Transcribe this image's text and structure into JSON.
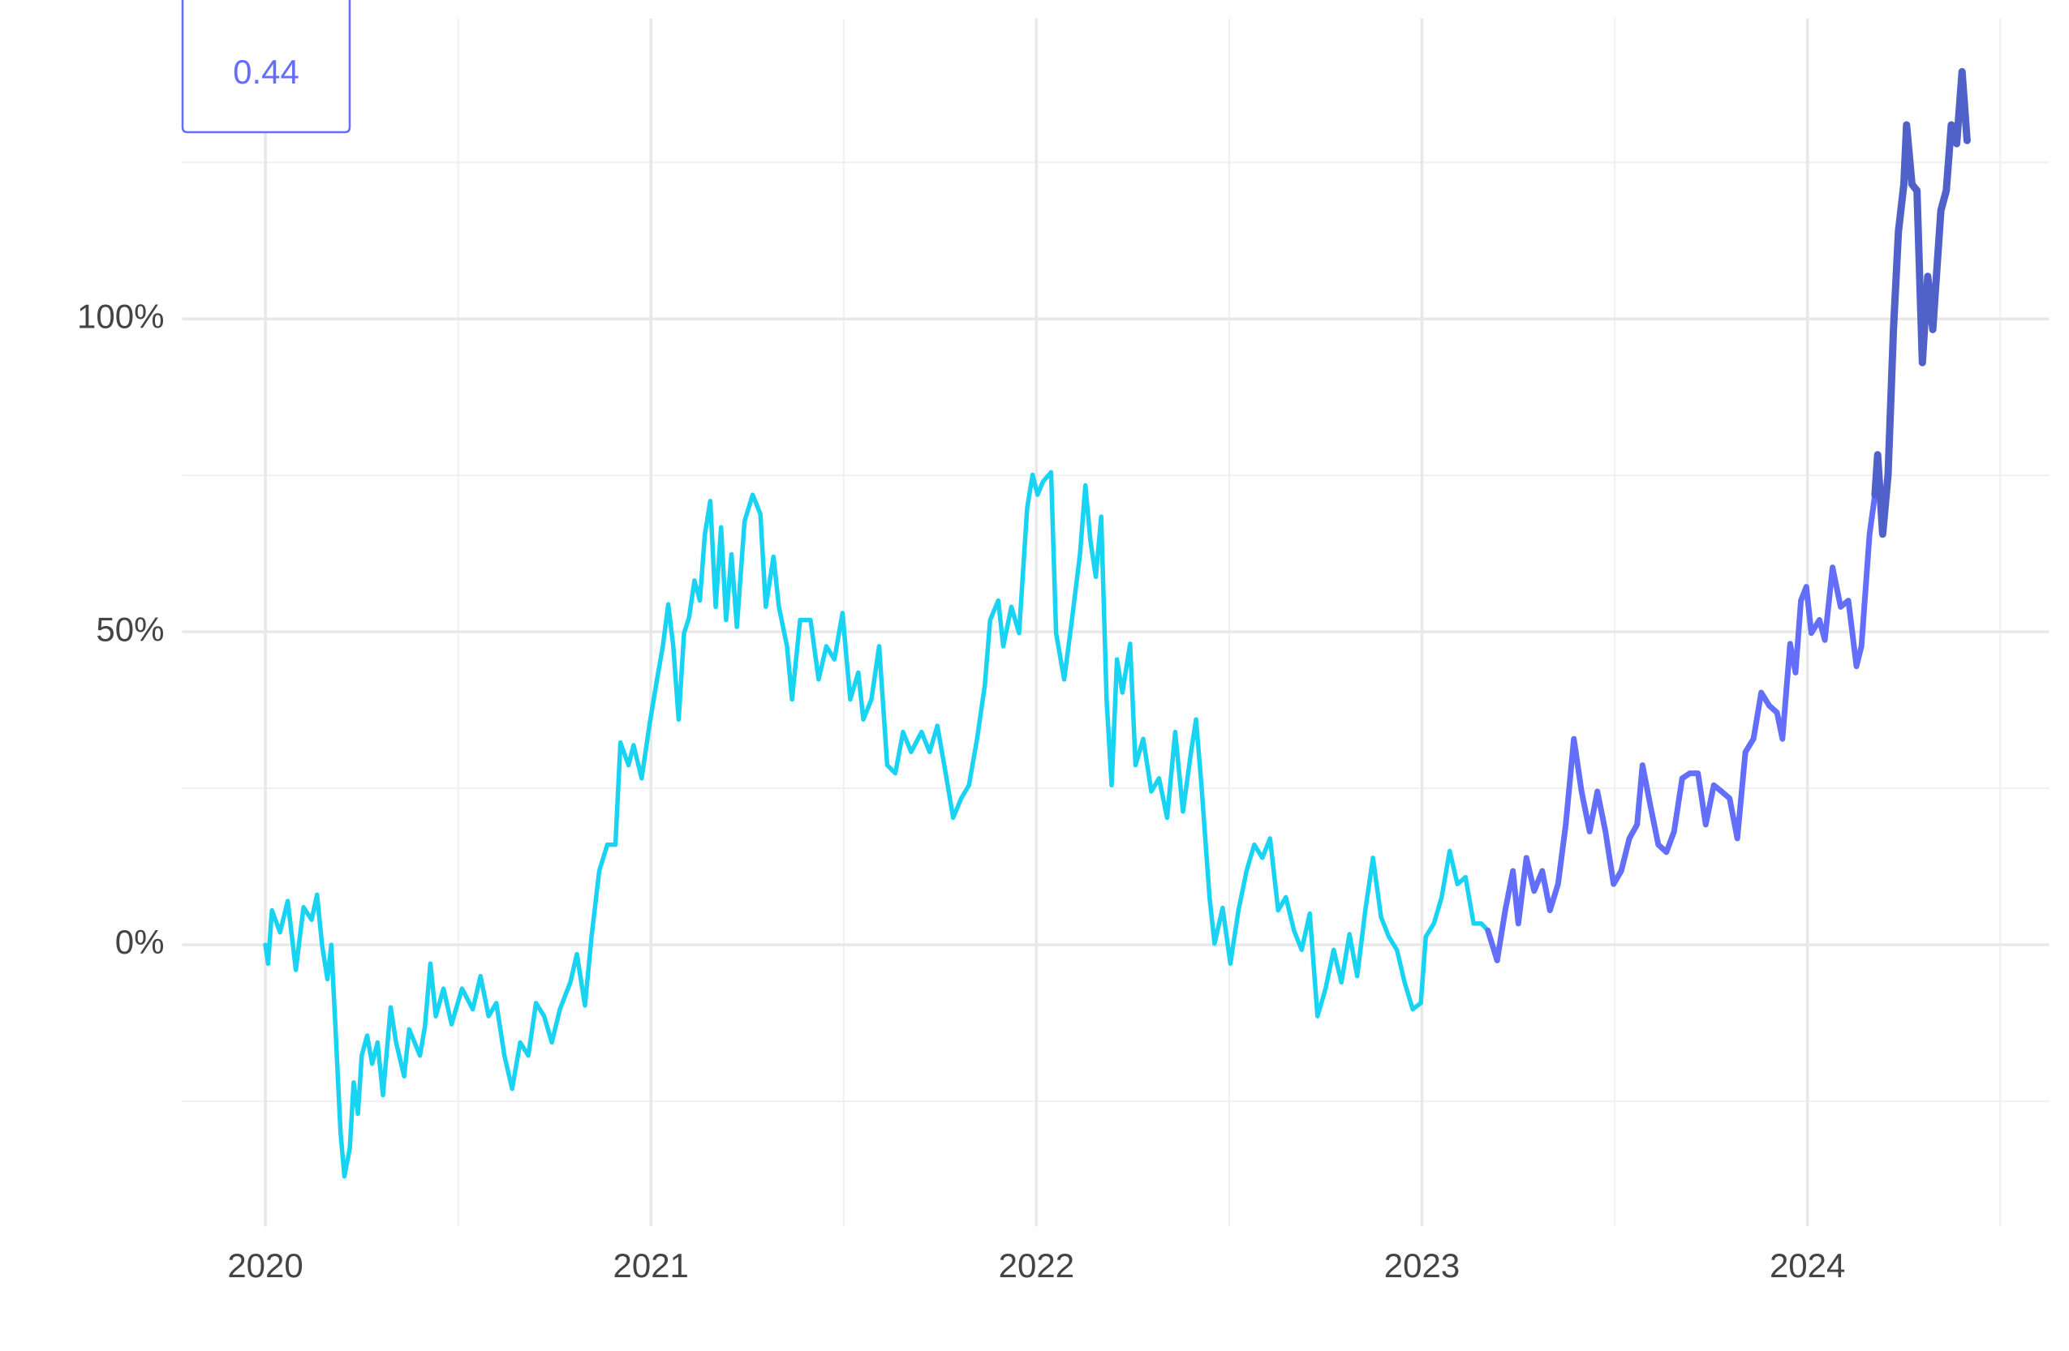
{
  "chart_data": {
    "type": "line",
    "annotation": "0.44",
    "xlim": [
      2019.784,
      2024.627
    ],
    "xticks": [
      2020,
      2021,
      2022,
      2023,
      2024
    ],
    "minor_xticks": [
      2020.5,
      2021.5,
      2022.5,
      2023.5,
      2024.5
    ],
    "ylim": [
      -45,
      148
    ],
    "yticks": [
      {
        "value": 0,
        "label": "0%"
      },
      {
        "value": 50,
        "label": "50%"
      },
      {
        "value": 100,
        "label": "100%"
      }
    ],
    "minor_yticks": [
      -25,
      25,
      75,
      125
    ],
    "grid": true,
    "series": [
      {
        "color": "#19d3f3",
        "x": [
          2020,
          2020.007,
          2020.017,
          2020.038,
          2020.058,
          2020.079,
          2020.099,
          2020.12,
          2020.134,
          2020.147,
          2020.161,
          2020.171,
          2020.182,
          2020.195,
          2020.205,
          2020.219,
          2020.229,
          2020.24,
          2020.25,
          2020.264,
          2020.277,
          2020.291,
          2020.305,
          2020.325,
          2020.339,
          2020.36,
          2020.373,
          2020.401,
          2020.414,
          2020.428,
          2020.442,
          2020.462,
          2020.483,
          2020.51,
          2020.538,
          2020.558,
          2020.579,
          2020.599,
          2020.62,
          2020.64,
          2020.661,
          2020.682,
          2020.702,
          2020.723,
          2020.743,
          2020.764,
          2020.791,
          2020.808,
          2020.829,
          2020.846,
          2020.866,
          2020.887,
          2020.908,
          2020.921,
          2020.942,
          2020.955,
          2020.976,
          2020.997,
          2021.017,
          2021.031,
          2021.045,
          2021.058,
          2021.072,
          2021.086,
          2021.099,
          2021.113,
          2021.127,
          2021.14,
          2021.154,
          2021.168,
          2021.182,
          2021.195,
          2021.209,
          2021.223,
          2021.243,
          2021.264,
          2021.284,
          2021.298,
          2021.318,
          2021.332,
          2021.353,
          2021.366,
          2021.387,
          2021.414,
          2021.435,
          2021.455,
          2021.476,
          2021.497,
          2021.517,
          2021.538,
          2021.551,
          2021.572,
          2021.592,
          2021.613,
          2021.634,
          2021.654,
          2021.675,
          2021.702,
          2021.723,
          2021.743,
          2021.764,
          2021.784,
          2021.805,
          2021.825,
          2021.846,
          2021.866,
          2021.88,
          2021.901,
          2021.914,
          2021.935,
          2021.955,
          2021.976,
          2021.99,
          2022.003,
          2022.017,
          2022.038,
          2022.051,
          2022.072,
          2022.092,
          2022.113,
          2022.127,
          2022.14,
          2022.154,
          2022.168,
          2022.182,
          2022.195,
          2022.209,
          2022.223,
          2022.243,
          2022.257,
          2022.277,
          2022.298,
          2022.318,
          2022.339,
          2022.36,
          2022.38,
          2022.401,
          2022.414,
          2022.428,
          2022.449,
          2022.462,
          2022.483,
          2022.503,
          2022.524,
          2022.545,
          2022.565,
          2022.586,
          2022.606,
          2022.627,
          2022.647,
          2022.668,
          2022.688,
          2022.709,
          2022.729,
          2022.75,
          2022.771,
          2022.791,
          2022.812,
          2022.832,
          2022.853,
          2022.873,
          2022.894,
          2022.914,
          2022.935,
          2022.955,
          2022.976,
          2022.997,
          2023.01,
          2023.031,
          2023.051,
          2023.072,
          2023.092,
          2023.113,
          2023.134,
          2023.154,
          2023.171
        ],
        "values": [
          0,
          -3,
          5.5,
          2,
          7,
          -4,
          6,
          4,
          8,
          0,
          -5.5,
          0,
          -13.5,
          -30,
          -37,
          -32.5,
          -22,
          -27,
          -17.7,
          -14.5,
          -19,
          -15.6,
          -24,
          -10,
          -15.6,
          -21,
          -13.5,
          -17.7,
          -13,
          -3,
          -11.4,
          -7,
          -12.7,
          -7,
          -10.3,
          -5,
          -11.4,
          -9.3,
          -17.7,
          -23,
          -15.6,
          -17.7,
          -9.3,
          -11.4,
          -15.6,
          -10.3,
          -6,
          -1.5,
          -9.7,
          1.3,
          11.8,
          16,
          16,
          32.3,
          28.7,
          31.9,
          26.6,
          35.4,
          42.8,
          47.7,
          54.4,
          47.7,
          36,
          49.8,
          52.3,
          58.2,
          55,
          65.6,
          70.9,
          54,
          66.7,
          51.9,
          62.4,
          50.8,
          67.7,
          71.9,
          68.8,
          54,
          62,
          54,
          47.7,
          39.2,
          51.9,
          51.9,
          42.4,
          47.7,
          45.6,
          53,
          39.2,
          43.5,
          36,
          39.2,
          47.7,
          28.7,
          27.4,
          34,
          30.8,
          34,
          30.8,
          35,
          27.6,
          20.3,
          23.4,
          25.5,
          32.9,
          41.4,
          51.9,
          55,
          47.7,
          54,
          49.8,
          69.8,
          75.1,
          71.9,
          74,
          75.5,
          49.8,
          42.4,
          51.9,
          62.4,
          73.4,
          64.6,
          58.8,
          68.4,
          39.2,
          25.5,
          45.6,
          40.3,
          48.1,
          28.7,
          32.9,
          24.5,
          26.6,
          20.3,
          34,
          21.3,
          30.8,
          36,
          25.5,
          7.6,
          0.2,
          5.9,
          -3,
          5.5,
          11.8,
          16,
          13.9,
          17,
          5.5,
          7.6,
          2.3,
          -0.8,
          5,
          -11.4,
          -7,
          -0.8,
          -6,
          1.7,
          -5,
          5.5,
          13.9,
          4.4,
          1.3,
          -0.8,
          -6,
          -10.3,
          -9.3,
          1.3,
          3.4,
          7.6,
          15,
          9.7,
          10.8,
          3.4,
          3.4,
          2.3
        ]
      },
      {
        "color": "#636efa",
        "x": [
          2023.171,
          2023.195,
          2023.216,
          2023.236,
          2023.25,
          2023.271,
          2023.291,
          2023.312,
          2023.332,
          2023.353,
          2023.373,
          2023.394,
          2023.414,
          2023.435,
          2023.455,
          2023.476,
          2023.497,
          2023.517,
          2023.538,
          2023.558,
          2023.572,
          2023.592,
          2023.613,
          2023.634,
          2023.654,
          2023.675,
          2023.695,
          2023.716,
          2023.736,
          2023.757,
          2023.777,
          2023.798,
          2023.818,
          2023.839,
          2023.86,
          2023.88,
          2023.901,
          2023.921,
          2023.935,
          2023.955,
          2023.969,
          2023.983,
          2023.997,
          2024.01,
          2024.031,
          2024.045,
          2024.065,
          2024.086,
          2024.106,
          2024.127,
          2024.14,
          2024.161,
          2024.175
        ],
        "values": [
          2.3,
          -2.5,
          5.5,
          11.8,
          3.4,
          13.9,
          8.6,
          11.8,
          5.5,
          9.7,
          19.2,
          32.9,
          24.5,
          18.1,
          24.5,
          18.1,
          9.7,
          11.8,
          17,
          19.2,
          28.7,
          22.4,
          16,
          14.8,
          18.1,
          26.6,
          27.4,
          27.4,
          19.2,
          25.5,
          24.5,
          23.4,
          17,
          30.8,
          32.9,
          40.3,
          38.2,
          37.1,
          32.9,
          48.1,
          43.5,
          55,
          57.2,
          49.8,
          51.9,
          48.7,
          60.3,
          54,
          55,
          44.5,
          47.7,
          65.6,
          71.9
        ]
      },
      {
        "color": "#5061c9",
        "x": [
          2024.175,
          2024.182,
          2024.195,
          2024.209,
          2024.223,
          2024.236,
          2024.25,
          2024.257,
          2024.271,
          2024.284,
          2024.298,
          2024.312,
          2024.325,
          2024.346,
          2024.36,
          2024.373,
          2024.387,
          2024.401,
          2024.414
        ],
        "values": [
          71.9,
          78.3,
          65.6,
          75.1,
          98.3,
          114,
          121.5,
          131,
          121.5,
          120.5,
          93,
          106.8,
          98.3,
          117.3,
          120.5,
          131,
          128,
          139.5,
          128.5
        ]
      }
    ]
  }
}
